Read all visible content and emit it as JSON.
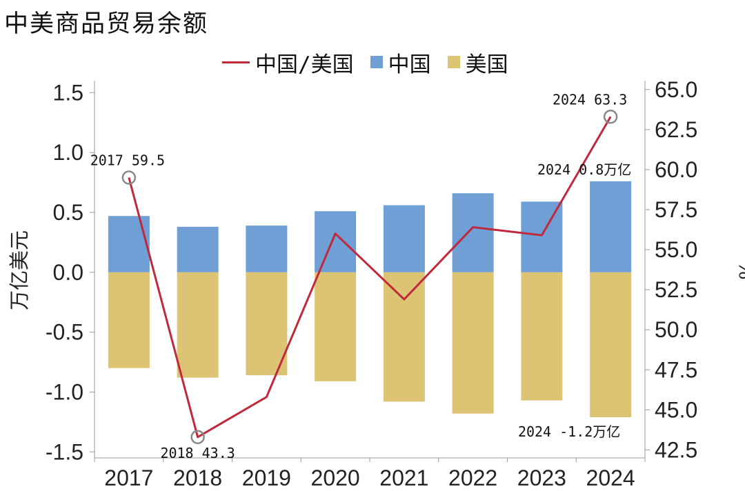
{
  "title": "中美商品贸易余额",
  "legend": [
    {
      "label": "中国/美国",
      "kind": "line",
      "color": "#c0283b"
    },
    {
      "label": "中国",
      "kind": "bar",
      "color": "#6f9fd4"
    },
    {
      "label": "美国",
      "kind": "bar",
      "color": "#dcc474"
    }
  ],
  "chart_data": {
    "type": "bar+line",
    "categories": [
      "2017",
      "2018",
      "2019",
      "2020",
      "2021",
      "2022",
      "2023",
      "2024"
    ],
    "ylabel_left": "万亿美元",
    "ylabel_right": "%",
    "ylim_left": [
      -1.55,
      1.6
    ],
    "ylim_right": [
      42.0,
      65.55
    ],
    "yticks_left": [
      "1.5",
      "1.0",
      "0.5",
      "0.0",
      "-0.5",
      "-1.0",
      "-1.5"
    ],
    "yticks_left_values": [
      1.5,
      1.0,
      0.5,
      0.0,
      -0.5,
      -1.0,
      -1.5
    ],
    "yticks_right": [
      "65.0",
      "62.5",
      "60.0",
      "57.5",
      "55.0",
      "52.5",
      "50.0",
      "47.5",
      "45.0",
      "42.5"
    ],
    "yticks_right_values": [
      65.0,
      62.5,
      60.0,
      57.5,
      55.0,
      52.5,
      50.0,
      47.5,
      45.0,
      42.5
    ],
    "series": [
      {
        "name": "中国",
        "type": "bar",
        "axis": "left",
        "color": "#6f9fd4",
        "values": [
          0.47,
          0.38,
          0.39,
          0.51,
          0.56,
          0.66,
          0.59,
          0.76
        ]
      },
      {
        "name": "美国",
        "type": "bar",
        "axis": "left",
        "color": "#dcc474",
        "values": [
          -0.8,
          -0.88,
          -0.86,
          -0.91,
          -1.08,
          -1.18,
          -1.07,
          -1.21
        ]
      },
      {
        "name": "中国/美国",
        "type": "line",
        "axis": "right",
        "color": "#c0283b",
        "values": [
          59.5,
          43.3,
          45.8,
          56.0,
          51.9,
          56.4,
          55.9,
          63.3
        ]
      }
    ],
    "annotations": [
      {
        "text": "2017 59.5",
        "series": 2,
        "index": 0,
        "marker": true,
        "pos": "above"
      },
      {
        "text": "2018 43.3",
        "series": 2,
        "index": 1,
        "marker": true,
        "pos": "below"
      },
      {
        "text": "2024 63.3",
        "series": 2,
        "index": 7,
        "marker": true,
        "pos": "above"
      },
      {
        "text": "2024 0.8万亿",
        "series": 0,
        "index": 7,
        "marker": false,
        "pos": "above"
      },
      {
        "text": "2024 -1.2万亿",
        "series": 1,
        "index": 7,
        "marker": false,
        "pos": "below"
      }
    ],
    "grid": false
  }
}
